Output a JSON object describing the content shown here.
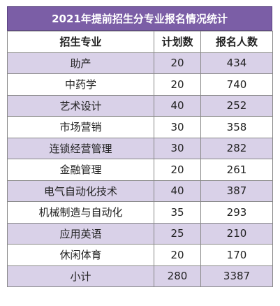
{
  "title": "2021年提前招生分专业报名情况统计",
  "headers": [
    "招生专业",
    "计划数",
    "报名人数"
  ],
  "rows": [
    {
      "major": "助产",
      "plan": "20",
      "applicants": "434"
    },
    {
      "major": "中药学",
      "plan": "20",
      "applicants": "740"
    },
    {
      "major": "艺术设计",
      "plan": "40",
      "applicants": "252"
    },
    {
      "major": "市场营销",
      "plan": "30",
      "applicants": "358"
    },
    {
      "major": "连锁经营管理",
      "plan": "30",
      "applicants": "282"
    },
    {
      "major": "金融管理",
      "plan": "20",
      "applicants": "261"
    },
    {
      "major": "电气自动化技术",
      "plan": "40",
      "applicants": "387"
    },
    {
      "major": "机械制造与自动化",
      "plan": "35",
      "applicants": "293"
    },
    {
      "major": "应用英语",
      "plan": "25",
      "applicants": "210"
    },
    {
      "major": "休闲体育",
      "plan": "20",
      "applicants": "170"
    }
  ],
  "total": {
    "label": "小计",
    "plan": "280",
    "applicants": "3387"
  },
  "colors": {
    "header_bg": "#7b5ea6",
    "stripe": "#d9d1e8"
  }
}
